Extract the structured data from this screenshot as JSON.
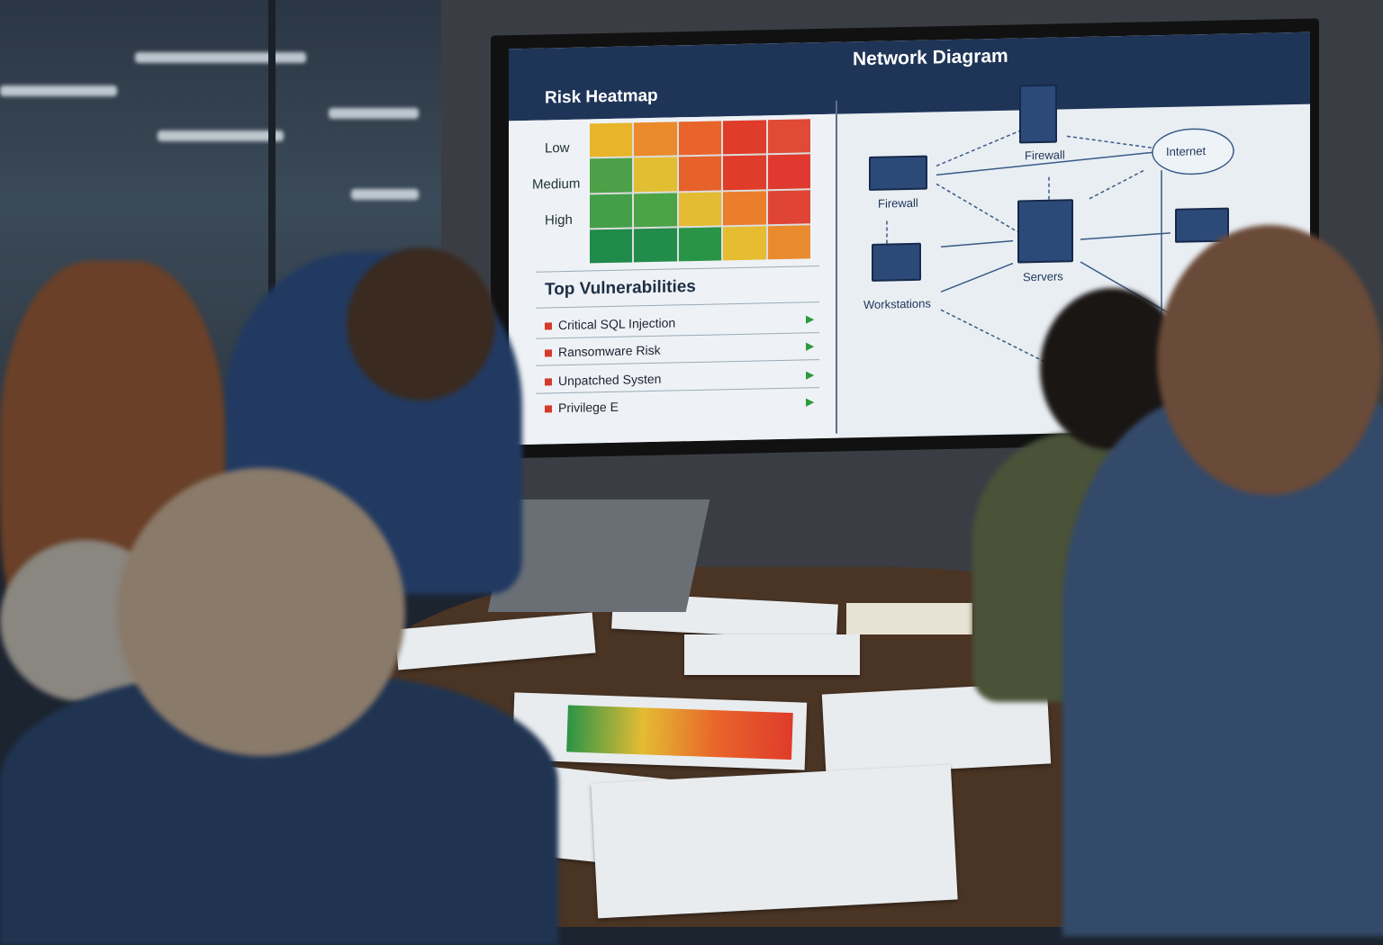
{
  "screen": {
    "left_title": "Risk Heatmap",
    "right_title": "Network Diagram",
    "heatmap": {
      "row_labels": [
        "Low",
        "Medium",
        "High"
      ],
      "cells": [
        [
          "#e8b52a",
          "#ea8a2a",
          "#e8642a",
          "#df3c2a",
          "#e04a36"
        ],
        [
          "#4ea048",
          "#e2be32",
          "#e6622a",
          "#e03c2a",
          "#e03a30"
        ],
        [
          "#44a048",
          "#4aa446",
          "#e4bc34",
          "#ea7e2a",
          "#e04434"
        ],
        [
          "#1f8a4a",
          "#228c4a",
          "#2a9446",
          "#e6bc32",
          "#ea8a2e"
        ]
      ]
    },
    "vulnerabilities": {
      "title": "Top Vulnerabilities",
      "items": [
        "Critical SQL Injection",
        "Ransomware Risk",
        "Unpatched Systen",
        "Privilege E"
      ]
    },
    "network": {
      "nodes": [
        "Firewall",
        "Firewall",
        "Internet",
        "Servers",
        "Workstations"
      ]
    }
  }
}
